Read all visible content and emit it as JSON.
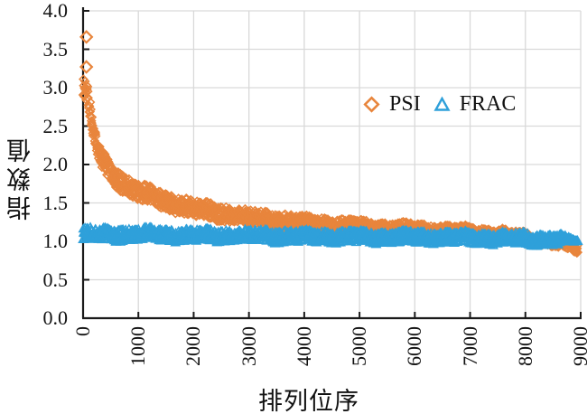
{
  "figure": {
    "background": "#ffffff",
    "axis_color": "#1a1a1a",
    "grid_color": "#d9d9d9"
  },
  "chart_data": {
    "type": "scatter",
    "title": "",
    "xlabel": "排列位序",
    "ylabel": "指数值",
    "xlim": [
      0,
      9000
    ],
    "ylim": [
      0.0,
      4.0
    ],
    "grid": true,
    "legend_position": "inside-upper-right",
    "x_ticks": [
      {
        "value": 0,
        "label": "0"
      },
      {
        "value": 1000,
        "label": "1000"
      },
      {
        "value": 2000,
        "label": "2000"
      },
      {
        "value": 3000,
        "label": "3000"
      },
      {
        "value": 4000,
        "label": "4000"
      },
      {
        "value": 5000,
        "label": "5000"
      },
      {
        "value": 6000,
        "label": "6000"
      },
      {
        "value": 7000,
        "label": "7000"
      },
      {
        "value": 8000,
        "label": "8000"
      },
      {
        "value": 9000,
        "label": "9000"
      }
    ],
    "y_ticks": [
      {
        "value": 0.0,
        "label": "0.0"
      },
      {
        "value": 0.5,
        "label": "0.5"
      },
      {
        "value": 1.0,
        "label": "1.0"
      },
      {
        "value": 1.5,
        "label": "1.5"
      },
      {
        "value": 2.0,
        "label": "2.0"
      },
      {
        "value": 2.5,
        "label": "2.5"
      },
      {
        "value": 3.0,
        "label": "3.0"
      },
      {
        "value": 3.5,
        "label": "3.5"
      },
      {
        "value": 4.0,
        "label": "4.0"
      }
    ],
    "series": [
      {
        "name": "PSI",
        "marker": "diamond",
        "color": "#e8853c",
        "x_start": 1,
        "x_end": 8950,
        "outlier_points": [
          [
            60,
            3.66
          ],
          [
            60,
            3.27
          ]
        ],
        "band_center": [
          [
            1,
            3.0
          ],
          [
            80,
            2.9
          ],
          [
            160,
            2.55
          ],
          [
            240,
            2.25
          ],
          [
            350,
            2.05
          ],
          [
            500,
            1.9
          ],
          [
            700,
            1.77
          ],
          [
            1000,
            1.64
          ],
          [
            1500,
            1.52
          ],
          [
            2000,
            1.43
          ],
          [
            2600,
            1.35
          ],
          [
            3200,
            1.29
          ],
          [
            4000,
            1.24
          ],
          [
            5000,
            1.19
          ],
          [
            6000,
            1.15
          ],
          [
            7000,
            1.12
          ],
          [
            7600,
            1.09
          ],
          [
            8100,
            1.04
          ],
          [
            8500,
            0.99
          ],
          [
            8800,
            0.93
          ],
          [
            8950,
            0.9
          ]
        ],
        "band_halfwidth_start": 0.12,
        "band_halfwidth_end": 0.055
      },
      {
        "name": "FRAC",
        "marker": "triangle",
        "color": "#2fa0da",
        "x_start": 1,
        "x_end": 8950,
        "outlier_points": [],
        "band_center": [
          [
            1,
            1.09
          ],
          [
            800,
            1.095
          ],
          [
            2000,
            1.08
          ],
          [
            3500,
            1.07
          ],
          [
            5000,
            1.06
          ],
          [
            6500,
            1.05
          ],
          [
            7800,
            1.04
          ],
          [
            8600,
            1.02
          ],
          [
            8950,
            1.01
          ]
        ],
        "band_halfwidth_start": 0.078,
        "band_halfwidth_end": 0.07,
        "taper_from": 8600
      }
    ]
  }
}
